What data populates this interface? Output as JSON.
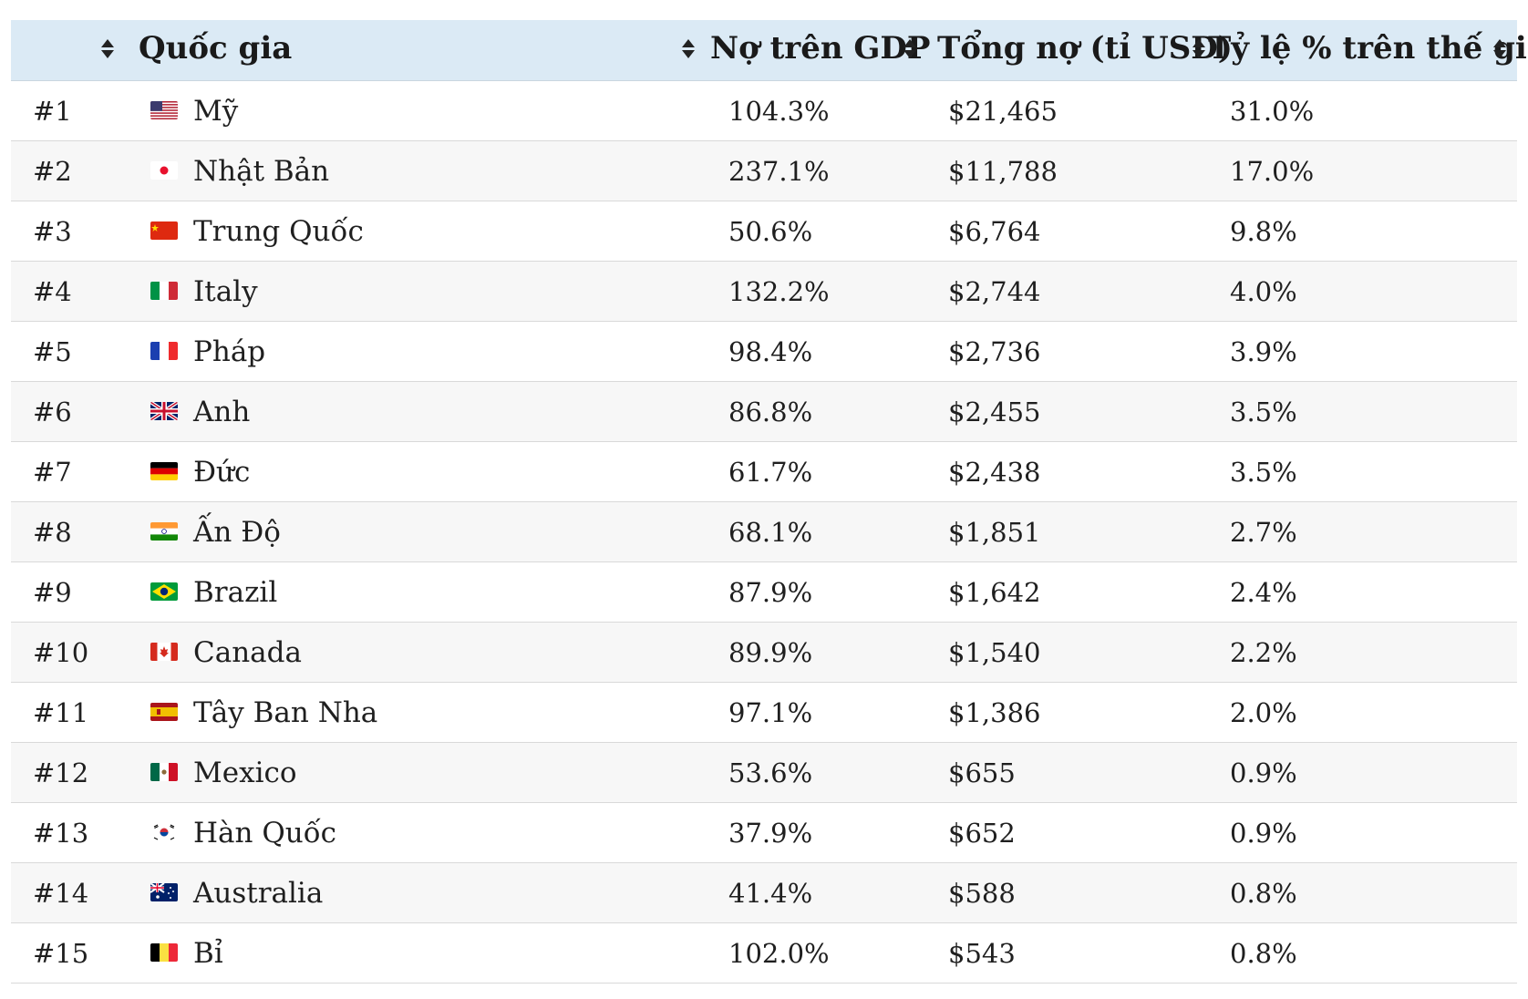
{
  "table": {
    "headers": {
      "country": "Quốc gia",
      "debt_to_gdp": "Nợ trên GDP",
      "total_debt": "Tổng nợ (tỉ USD)",
      "world_share": "Tỷ lệ % trên thế giới"
    },
    "rows": [
      {
        "rank": "#1",
        "flag": "us-flag-icon",
        "country": "Mỹ",
        "debt_to_gdp": "104.3%",
        "total_debt": "$21,465",
        "world_share": "31.0%"
      },
      {
        "rank": "#2",
        "flag": "jp-flag-icon",
        "country": "Nhật Bản",
        "debt_to_gdp": "237.1%",
        "total_debt": "$11,788",
        "world_share": "17.0%"
      },
      {
        "rank": "#3",
        "flag": "cn-flag-icon",
        "country": "Trung Quốc",
        "debt_to_gdp": "50.6%",
        "total_debt": "$6,764",
        "world_share": "9.8%"
      },
      {
        "rank": "#4",
        "flag": "it-flag-icon",
        "country": "Italy",
        "debt_to_gdp": "132.2%",
        "total_debt": "$2,744",
        "world_share": "4.0%"
      },
      {
        "rank": "#5",
        "flag": "fr-flag-icon",
        "country": "Pháp",
        "debt_to_gdp": "98.4%",
        "total_debt": "$2,736",
        "world_share": "3.9%"
      },
      {
        "rank": "#6",
        "flag": "uk-flag-icon",
        "country": "Anh",
        "debt_to_gdp": "86.8%",
        "total_debt": "$2,455",
        "world_share": "3.5%"
      },
      {
        "rank": "#7",
        "flag": "de-flag-icon",
        "country": "Đức",
        "debt_to_gdp": "61.7%",
        "total_debt": "$2,438",
        "world_share": "3.5%"
      },
      {
        "rank": "#8",
        "flag": "in-flag-icon",
        "country": "Ấn Độ",
        "debt_to_gdp": "68.1%",
        "total_debt": "$1,851",
        "world_share": "2.7%"
      },
      {
        "rank": "#9",
        "flag": "br-flag-icon",
        "country": "Brazil",
        "debt_to_gdp": "87.9%",
        "total_debt": "$1,642",
        "world_share": "2.4%"
      },
      {
        "rank": "#10",
        "flag": "ca-flag-icon",
        "country": "Canada",
        "debt_to_gdp": "89.9%",
        "total_debt": "$1,540",
        "world_share": "2.2%"
      },
      {
        "rank": "#11",
        "flag": "es-flag-icon",
        "country": "Tây Ban Nha",
        "debt_to_gdp": "97.1%",
        "total_debt": "$1,386",
        "world_share": "2.0%"
      },
      {
        "rank": "#12",
        "flag": "mx-flag-icon",
        "country": "Mexico",
        "debt_to_gdp": "53.6%",
        "total_debt": "$655",
        "world_share": "0.9%"
      },
      {
        "rank": "#13",
        "flag": "kr-flag-icon",
        "country": "Hàn Quốc",
        "debt_to_gdp": "37.9%",
        "total_debt": "$652",
        "world_share": "0.9%"
      },
      {
        "rank": "#14",
        "flag": "au-flag-icon",
        "country": "Australia",
        "debt_to_gdp": "41.4%",
        "total_debt": "$588",
        "world_share": "0.8%"
      },
      {
        "rank": "#15",
        "flag": "be-flag-icon",
        "country": "Bỉ",
        "debt_to_gdp": "102.0%",
        "total_debt": "$543",
        "world_share": "0.8%"
      }
    ]
  },
  "colors": {
    "header_bg": "#dbeaf5",
    "row_alt_bg": "#f7f7f7",
    "divider": "#d9d9d9"
  }
}
